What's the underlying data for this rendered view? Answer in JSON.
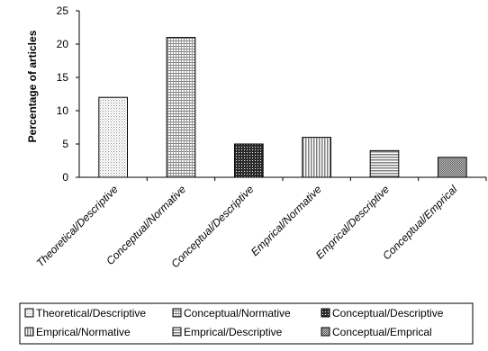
{
  "chart_data": {
    "type": "bar",
    "title": "",
    "xlabel": "",
    "ylabel": "Percentage of articles",
    "ylim": [
      0,
      25
    ],
    "yticks": [
      0,
      5,
      10,
      15,
      20,
      25
    ],
    "grid": false,
    "legend_position": "bottom",
    "categories": [
      "Theoretical/Descriptive",
      "Conceptual/Normative",
      "Conceptual/Descriptive",
      "Emprical/Normative",
      "Emprical/Descriptive",
      "Conceptual/Emprical"
    ],
    "values": [
      12,
      21,
      5,
      6,
      4,
      3
    ],
    "patterns": [
      "dots",
      "grid-fine",
      "grid-dark",
      "vertical",
      "horizontal",
      "grid-dense"
    ],
    "legend": [
      "Theoretical/Descriptive",
      "Conceptual/Normative",
      "Conceptual/Descriptive",
      "Emprical/Normative",
      "Emprical/Descriptive",
      "Conceptual/Emprical"
    ]
  }
}
